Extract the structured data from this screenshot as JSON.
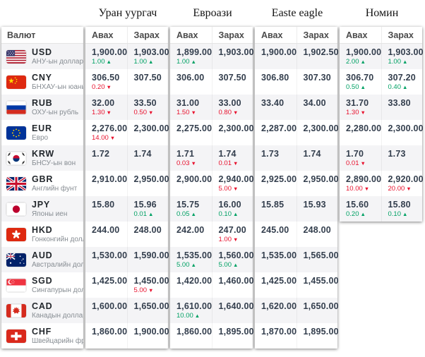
{
  "table": {
    "currency_header": "Валют",
    "buy_header": "Авах",
    "sell_header": "Зарах"
  },
  "colors": {
    "up": "#00a164",
    "down": "#e8112d",
    "value": "#333e4d"
  },
  "icons": {
    "up_arrow": "▲",
    "down_arrow": "▼"
  },
  "currencies": [
    {
      "code": "USD",
      "name": "АНУ-ын доллар",
      "flag": "us"
    },
    {
      "code": "CNY",
      "name": "БНХАУ-ын юань",
      "flag": "cn"
    },
    {
      "code": "RUB",
      "name": "ОХУ-ын рубль",
      "flag": "ru"
    },
    {
      "code": "EUR",
      "name": "Евро",
      "flag": "eu"
    },
    {
      "code": "KRW",
      "name": "БНСУ-ын вон",
      "flag": "kr"
    },
    {
      "code": "GBR",
      "name": "Английн фунт",
      "flag": "gb"
    },
    {
      "code": "JPY",
      "name": "Японы иен",
      "flag": "jp"
    },
    {
      "code": "HKD",
      "name": "Гонконгийн доллар",
      "flag": "hk"
    },
    {
      "code": "AUD",
      "name": "Австралийн доллар",
      "flag": "au"
    },
    {
      "code": "SGD",
      "name": "Сингапурын доллар",
      "flag": "sg"
    },
    {
      "code": "CAD",
      "name": "Канадын доллар",
      "flag": "ca"
    },
    {
      "code": "CHF",
      "name": "Швейцарийн франк",
      "flag": "ch"
    }
  ],
  "providers": [
    {
      "id": "uran-uurgach",
      "name": "Уран уургач",
      "rates": [
        {
          "buy": "1,900.00",
          "buy_d": "1.00",
          "buy_t": "up",
          "sell": "1,903.00",
          "sell_d": "1.00",
          "sell_t": "up"
        },
        {
          "buy": "306.50",
          "buy_d": "0.20",
          "buy_t": "down",
          "sell": "307.50"
        },
        {
          "buy": "32.00",
          "buy_d": "1.30",
          "buy_t": "down",
          "sell": "33.50",
          "sell_d": "0.50",
          "sell_t": "down"
        },
        {
          "buy": "2,276.00",
          "buy_d": "14.00",
          "buy_t": "down",
          "sell": "2,300.00"
        },
        {
          "buy": "1.72",
          "sell": "1.74"
        },
        {
          "buy": "2,910.00",
          "sell": "2,950.00"
        },
        {
          "buy": "15.80",
          "sell": "15.96",
          "sell_d": "0.01",
          "sell_t": "up"
        },
        {
          "buy": "244.00",
          "sell": "248.00"
        },
        {
          "buy": "1,530.00",
          "sell": "1,590.00"
        },
        {
          "buy": "1,425.00",
          "sell": "1,450.00",
          "sell_d": "5.00",
          "sell_t": "down"
        },
        {
          "buy": "1,600.00",
          "sell": "1,650.00"
        },
        {
          "buy": "1,860.00",
          "sell": "1,900.00"
        }
      ]
    },
    {
      "id": "euroasia",
      "name": "Евроази",
      "rates": [
        {
          "buy": "1,899.00",
          "buy_d": "1.00",
          "buy_t": "up",
          "sell": "1,903.00"
        },
        {
          "buy": "306.00",
          "sell": "307.50"
        },
        {
          "buy": "31.00",
          "buy_d": "1.50",
          "buy_t": "down",
          "sell": "33.00",
          "sell_d": "0.80",
          "sell_t": "down"
        },
        {
          "buy": "2,275.00",
          "sell": "2,300.00"
        },
        {
          "buy": "1.71",
          "buy_d": "0.03",
          "buy_t": "down",
          "sell": "1.74",
          "sell_d": "0.01",
          "sell_t": "down"
        },
        {
          "buy": "2,900.00",
          "sell": "2,940.00",
          "sell_d": "5.00",
          "sell_t": "down"
        },
        {
          "buy": "15.75",
          "buy_d": "0.05",
          "buy_t": "up",
          "sell": "16.00",
          "sell_d": "0.10",
          "sell_t": "up"
        },
        {
          "buy": "242.00",
          "sell": "247.00",
          "sell_d": "1.00",
          "sell_t": "down"
        },
        {
          "buy": "1,535.00",
          "buy_d": "5.00",
          "buy_t": "up",
          "sell": "1,560.00",
          "sell_d": "5.00",
          "sell_t": "up"
        },
        {
          "buy": "1,420.00",
          "sell": "1,460.00"
        },
        {
          "buy": "1,610.00",
          "buy_d": "10.00",
          "buy_t": "up",
          "sell": "1,640.00"
        },
        {
          "buy": "1,860.00",
          "sell": "1,895.00"
        }
      ]
    },
    {
      "id": "easte-eagle",
      "name": "Easte eagle",
      "rates": [
        {
          "buy": "1,900.00",
          "sell": "1,902.50"
        },
        {
          "buy": "306.80",
          "sell": "307.30"
        },
        {
          "buy": "33.40",
          "sell": "34.00"
        },
        {
          "buy": "2,287.00",
          "sell": "2,300.00"
        },
        {
          "buy": "1.73",
          "sell": "1.74"
        },
        {
          "buy": "2,925.00",
          "sell": "2,950.00"
        },
        {
          "buy": "15.85",
          "sell": "15.93"
        },
        {
          "buy": "245.00",
          "sell": "248.00"
        },
        {
          "buy": "1,535.00",
          "sell": "1,565.00"
        },
        {
          "buy": "1,425.00",
          "sell": "1,455.00"
        },
        {
          "buy": "1,620.00",
          "sell": "1,650.00"
        },
        {
          "buy": "1,870.00",
          "sell": "1,895.00"
        }
      ]
    },
    {
      "id": "nomin",
      "name": "Номин",
      "rates": [
        {
          "buy": "1,900.00",
          "buy_d": "2.00",
          "buy_t": "up",
          "sell": "1,903.00",
          "sell_d": "1.00",
          "sell_t": "up"
        },
        {
          "buy": "306.70",
          "buy_d": "0.50",
          "buy_t": "up",
          "sell": "307.20",
          "sell_d": "0.40",
          "sell_t": "up"
        },
        {
          "buy": "31.70",
          "buy_d": "1.30",
          "buy_t": "down",
          "sell": "33.80"
        },
        {
          "buy": "2,280.00",
          "sell": "2,300.00"
        },
        {
          "buy": "1.70",
          "buy_d": "0.01",
          "buy_t": "down",
          "sell": "1.73"
        },
        {
          "buy": "2,890.00",
          "buy_d": "10.00",
          "buy_t": "down",
          "sell": "2,920.00",
          "sell_d": "20.00",
          "sell_t": "down"
        },
        {
          "buy": "15.60",
          "buy_d": "0.20",
          "buy_t": "up",
          "sell": "15.80",
          "sell_d": "0.10",
          "sell_t": "up"
        }
      ]
    }
  ]
}
